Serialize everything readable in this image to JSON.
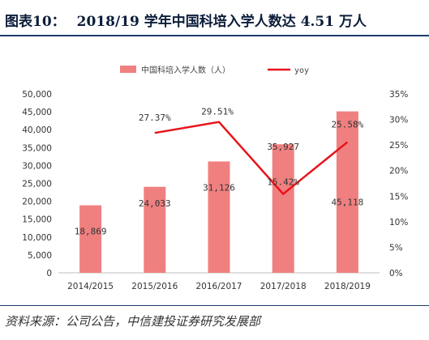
{
  "header": {
    "figure_label": "图表10：",
    "title": "2018/19 学年中国科培入学人数达 4.51 万人"
  },
  "chart_data": {
    "type": "bar",
    "categories": [
      "2014/2015",
      "2015/2016",
      "2016/2017",
      "2017/2018",
      "2018/2019"
    ],
    "series": [
      {
        "name": "中国科培入学人数（人）",
        "type": "bar",
        "axis": "left",
        "values": [
          18869,
          24033,
          31126,
          35927,
          45118
        ],
        "labels": [
          "18,869",
          "24,033",
          "31,126",
          "35,927",
          "45,118"
        ],
        "color": "#f08080"
      },
      {
        "name": "yoy",
        "type": "line",
        "axis": "right",
        "values": [
          null,
          27.37,
          29.51,
          15.42,
          25.58
        ],
        "labels": [
          "",
          "27.37%",
          "29.51%",
          "15.42%",
          "25.58%"
        ],
        "color": "#e8141b"
      }
    ],
    "y_left": {
      "min": 0,
      "max": 50000,
      "ticks": [
        "0",
        "5,000",
        "10,000",
        "15,000",
        "20,000",
        "25,000",
        "30,000",
        "35,000",
        "40,000",
        "45,000",
        "50,000"
      ]
    },
    "y_right": {
      "min": 0,
      "max": 35,
      "ticks": [
        "0%",
        "5%",
        "10%",
        "15%",
        "20%",
        "25%",
        "30%",
        "35%"
      ]
    },
    "legend_position": "top",
    "grid": false
  },
  "footer": {
    "source": "资料来源：公司公告，中信建投证券研究发展部"
  }
}
